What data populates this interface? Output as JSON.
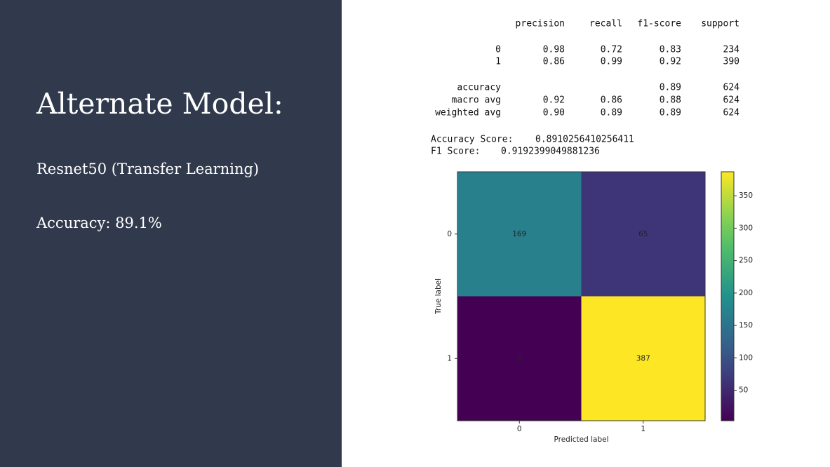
{
  "slide": {
    "title": "Alternate Model:",
    "lines": [
      "Resnet50 (Transfer Learning)",
      "Accuracy: 89.1%"
    ]
  },
  "report": {
    "columns": [
      "precision",
      "recall",
      "f1-score",
      "support"
    ],
    "rows": [
      {
        "label": "0",
        "cells": {
          "precision": "0.98",
          "recall": "0.72",
          "f1-score": "0.83",
          "support": "234"
        }
      },
      {
        "label": "1",
        "cells": {
          "precision": "0.86",
          "recall": "0.99",
          "f1-score": "0.92",
          "support": "390"
        }
      },
      {
        "label": "accuracy",
        "cells": {
          "f1-score": "0.89",
          "support": "624"
        }
      },
      {
        "label": "macro avg",
        "cells": {
          "precision": "0.92",
          "recall": "0.86",
          "f1-score": "0.88",
          "support": "624"
        }
      },
      {
        "label": "weighted avg",
        "cells": {
          "precision": "0.90",
          "recall": "0.89",
          "f1-score": "0.89",
          "support": "624"
        }
      }
    ],
    "scores": [
      {
        "label": "Accuracy Score:",
        "value": "0.8910256410256411"
      },
      {
        "label": "F1 Score:",
        "value": "0.9192399049881236"
      }
    ]
  },
  "chart_data": {
    "type": "heatmap",
    "x_categories": [
      "0",
      "1"
    ],
    "y_categories": [
      "0",
      "1"
    ],
    "values": [
      [
        169,
        65
      ],
      [
        3,
        387
      ]
    ],
    "xlabel": "Predicted label",
    "ylabel": "True label",
    "colormap": "viridis",
    "zlim": [
      3,
      387
    ],
    "zticks": [
      50,
      100,
      150,
      200,
      250,
      300,
      350
    ]
  }
}
